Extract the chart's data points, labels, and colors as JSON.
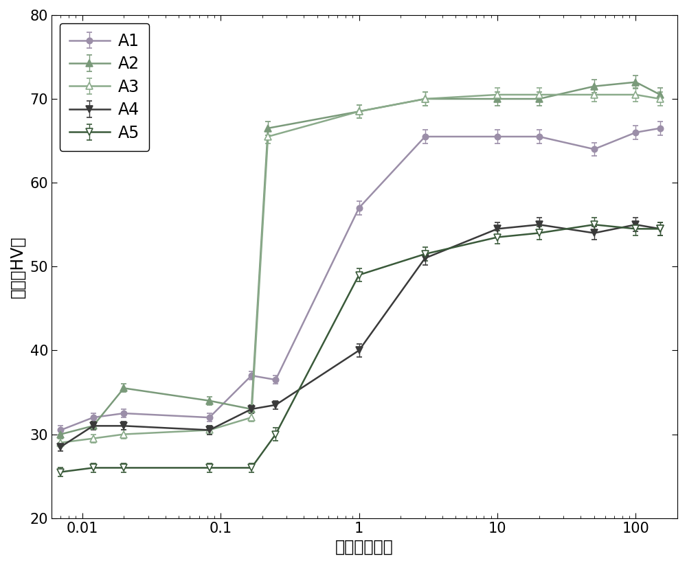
{
  "title": "",
  "xlabel": "时间（小时）",
  "ylabel": "硬度（HV）",
  "xlim": [
    0.006,
    200
  ],
  "ylim": [
    20,
    80
  ],
  "yticks": [
    20,
    30,
    40,
    50,
    60,
    70,
    80
  ],
  "series": [
    {
      "label": "A1",
      "color": "#9b8ea8",
      "marker": "o",
      "filled": true,
      "markersize": 6,
      "x": [
        0.007,
        0.012,
        0.02,
        0.083,
        0.167,
        0.25,
        1.0,
        3.0,
        10.0,
        20.0,
        50.0,
        100.0,
        150.0
      ],
      "y": [
        30.5,
        32.0,
        32.5,
        32.0,
        37.0,
        36.5,
        57.0,
        65.5,
        65.5,
        65.5,
        64.0,
        66.0,
        66.5
      ],
      "yerr": [
        0.5,
        0.5,
        0.5,
        0.5,
        0.5,
        0.5,
        0.8,
        0.8,
        0.8,
        0.8,
        0.8,
        0.8,
        0.8
      ]
    },
    {
      "label": "A2",
      "color": "#7a9a7a",
      "marker": "^",
      "filled": true,
      "markersize": 7,
      "x": [
        0.007,
        0.012,
        0.02,
        0.083,
        0.167,
        0.22,
        1.0,
        3.0,
        10.0,
        20.0,
        50.0,
        100.0,
        150.0
      ],
      "y": [
        30.0,
        31.0,
        35.5,
        34.0,
        33.0,
        66.5,
        68.5,
        70.0,
        70.0,
        70.0,
        71.5,
        72.0,
        70.5
      ],
      "yerr": [
        0.5,
        0.5,
        0.5,
        0.5,
        0.5,
        0.8,
        0.8,
        0.8,
        0.8,
        0.8,
        0.8,
        0.8,
        0.8
      ]
    },
    {
      "label": "A3",
      "color": "#8aaa8a",
      "marker": "^",
      "filled": false,
      "markersize": 7,
      "x": [
        0.007,
        0.012,
        0.02,
        0.083,
        0.167,
        0.22,
        1.0,
        3.0,
        10.0,
        20.0,
        50.0,
        100.0,
        150.0
      ],
      "y": [
        29.0,
        29.5,
        30.0,
        30.5,
        32.0,
        65.5,
        68.5,
        70.0,
        70.5,
        70.5,
        70.5,
        70.5,
        70.0
      ],
      "yerr": [
        0.5,
        0.5,
        0.5,
        0.5,
        0.5,
        0.8,
        0.8,
        0.8,
        0.8,
        0.8,
        0.8,
        0.8,
        0.8
      ]
    },
    {
      "label": "A4",
      "color": "#3a3a3a",
      "marker": "v",
      "filled": true,
      "markersize": 7,
      "x": [
        0.007,
        0.012,
        0.02,
        0.083,
        0.167,
        0.25,
        1.0,
        3.0,
        10.0,
        20.0,
        50.0,
        100.0,
        150.0
      ],
      "y": [
        28.5,
        31.0,
        31.0,
        30.5,
        33.0,
        33.5,
        40.0,
        51.0,
        54.5,
        55.0,
        54.0,
        55.0,
        54.5
      ],
      "yerr": [
        0.5,
        0.5,
        0.5,
        0.5,
        0.5,
        0.5,
        0.8,
        0.8,
        0.8,
        0.8,
        0.8,
        0.8,
        0.8
      ]
    },
    {
      "label": "A5",
      "color": "#3a5a3a",
      "marker": "v",
      "filled": false,
      "markersize": 7,
      "x": [
        0.007,
        0.012,
        0.02,
        0.083,
        0.167,
        0.25,
        1.0,
        3.0,
        10.0,
        20.0,
        50.0,
        100.0,
        150.0
      ],
      "y": [
        25.5,
        26.0,
        26.0,
        26.0,
        26.0,
        30.0,
        49.0,
        51.5,
        53.5,
        54.0,
        55.0,
        54.5,
        54.5
      ],
      "yerr": [
        0.5,
        0.5,
        0.5,
        0.5,
        0.5,
        0.8,
        0.8,
        0.8,
        0.8,
        0.8,
        0.8,
        0.8,
        0.8
      ]
    }
  ],
  "legend_loc": "upper left",
  "fontsize": 17,
  "tick_fontsize": 15,
  "linewidth": 1.8,
  "capsize": 3,
  "markerlinewidth": 1.2
}
